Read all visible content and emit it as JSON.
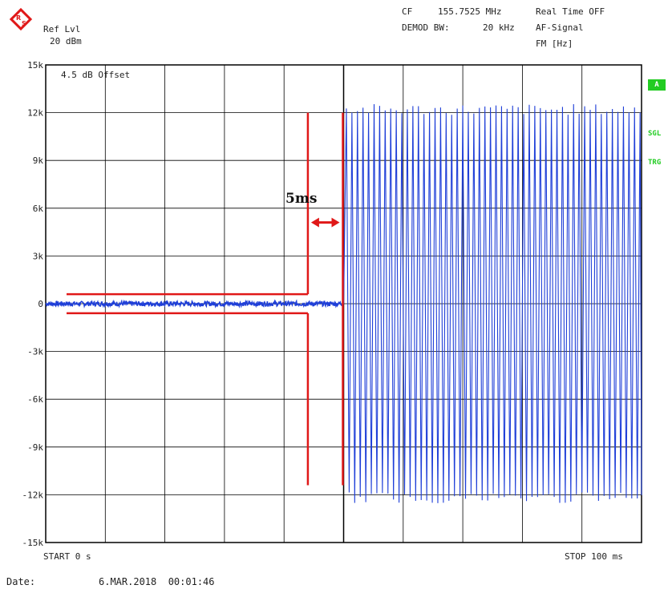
{
  "header": {
    "ref_lvl_label": "Ref Lvl",
    "ref_lvl_value": "20 dBm",
    "cf_label": "CF",
    "cf_value": "155.7525 MHz",
    "demod_bw_label": "DEMOD BW:",
    "demod_bw_value": "20 kHz",
    "realtime": "Real Time OFF",
    "af_signal": "AF-Signal",
    "unit": "FM [Hz]"
  },
  "offset_label": "4.5 dB Offset",
  "annotation": "5ms",
  "side_labels": {
    "a": "A",
    "sgl": "SGL",
    "trg": "TRG"
  },
  "footer": {
    "start": "START 0 s",
    "stop": "STOP 100 ms",
    "date_label": "Date:",
    "date_value": "6.MAR.2018  00:01:46"
  },
  "colors": {
    "trace": "#1f3fd8",
    "annotation": "#e01818",
    "grid": "#000000",
    "side_badge": "#22cc22"
  },
  "chart_data": {
    "type": "line",
    "xlabel": "",
    "ylabel": "FM [Hz]",
    "xlim": [
      0,
      100
    ],
    "x_unit": "ms",
    "ylim": [
      -15000,
      15000
    ],
    "y_ticks": [
      15000,
      12000,
      9000,
      6000,
      3000,
      0,
      -3000,
      -6000,
      -9000,
      -12000,
      -15000
    ],
    "y_tick_labels": [
      "15k",
      "12k",
      "9k",
      "6k",
      "3k",
      "0",
      "-3k",
      "-6k",
      "-9k",
      "-12k",
      "-15k"
    ],
    "grid": true,
    "series": [
      {
        "name": "",
        "segments": [
          {
            "x_start": 0,
            "x_end": 50,
            "value": 0,
            "noise_hz": 150
          },
          {
            "x_start": 50,
            "x_end": 100,
            "amplitude_hz": 12200,
            "tone_period_ms": 0.93
          }
        ]
      }
    ],
    "mask": {
      "upper_limit_hz": 600,
      "lower_limit_hz": -600,
      "mask_end_ms": 44,
      "mask_vertical_top_hz": 12000,
      "mask_vertical_bottom_hz": -11400,
      "event_ms": 50,
      "event_vertical_top_hz": 12000,
      "event_vertical_bottom_hz": -11400,
      "arrow_from_ms": 44,
      "arrow_to_ms": 50,
      "arrow_y_hz": 5100
    }
  }
}
